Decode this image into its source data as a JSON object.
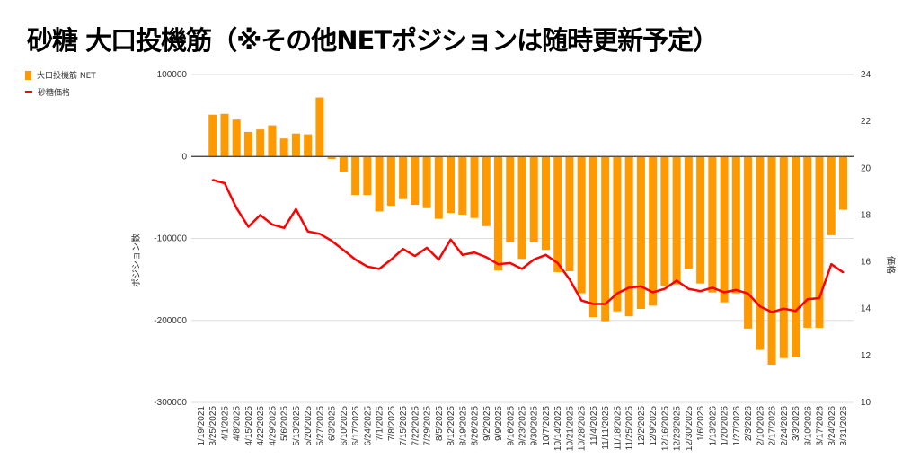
{
  "title": "砂糖 大口投機筋（※その他NETポジションは随時更新予定）",
  "chart_data": {
    "type": "bar+line",
    "title": "砂糖 大口投機筋（※その他NETポジションは随時更新予定）",
    "legend_position": "top-left",
    "grid": true,
    "ylabel": "ポジション数",
    "y2label": "価格",
    "ylim": [
      -300000,
      100000
    ],
    "y2lim": [
      10,
      24
    ],
    "yticks": [
      "100000",
      "0",
      "-100000",
      "-200000",
      "-300000"
    ],
    "ytick_values": [
      100000,
      0,
      -100000,
      -200000,
      -300000
    ],
    "y2ticks": [
      "24",
      "22",
      "20",
      "18",
      "16",
      "14",
      "12",
      "10"
    ],
    "y2tick_values": [
      24,
      22,
      20,
      18,
      16,
      14,
      12,
      10
    ],
    "categories": [
      "1/19/2021",
      "3/25/2025",
      "4/1/2025",
      "4/8/2025",
      "4/15/2025",
      "4/22/2025",
      "4/29/2025",
      "5/6/2025",
      "5/13/2025",
      "5/20/2025",
      "5/27/2025",
      "6/3/2025",
      "6/10/2025",
      "6/17/2025",
      "6/24/2025",
      "7/1/2025",
      "7/8/2025",
      "7/15/2025",
      "7/22/2025",
      "7/29/2025",
      "8/5/2025",
      "8/12/2025",
      "8/19/2025",
      "8/26/2025",
      "9/2/2025",
      "9/9/2025",
      "9/16/2025",
      "9/23/2025",
      "9/30/2025",
      "10/7/2025",
      "10/14/2025",
      "10/21/2025",
      "10/28/2025",
      "11/4/2025",
      "11/11/2025",
      "11/18/2025",
      "11/25/2025",
      "12/2/2025",
      "12/9/2025",
      "12/16/2025",
      "12/23/2025",
      "12/30/2025",
      "1/6/2026",
      "1/13/2026",
      "1/20/2026",
      "1/27/2026",
      "2/3/2026",
      "2/10/2026",
      "2/17/2026",
      "2/24/2026",
      "3/3/2026",
      "3/10/2026",
      "3/17/2026",
      "3/24/2026",
      "3/31/2026"
    ],
    "series": [
      {
        "name": "大口投機筋  NET",
        "type": "bar",
        "axis": "left",
        "color": "#ff9900",
        "values": [
          null,
          51000,
          52000,
          45000,
          30000,
          33000,
          38000,
          22000,
          28000,
          27000,
          72000,
          -3000,
          -19000,
          -47000,
          -47000,
          -67000,
          -60000,
          -52000,
          -59000,
          -63000,
          -76000,
          -69000,
          -71000,
          -75000,
          -85000,
          -139000,
          -105000,
          -125000,
          -105000,
          -114000,
          -141000,
          -140000,
          -167000,
          -196000,
          -201000,
          -189000,
          -195000,
          -186000,
          -182000,
          -158000,
          -156000,
          -137000,
          -155000,
          -166000,
          -178000,
          -167000,
          -210000,
          -236000,
          -254000,
          -246000,
          -245000,
          -209000,
          -209000,
          -96000,
          -65000
        ]
      },
      {
        "name": "砂糖価格",
        "type": "line",
        "axis": "right",
        "color": "#ff0000",
        "values": [
          null,
          19.5,
          19.36,
          18.3,
          17.5,
          18.0,
          17.6,
          17.45,
          18.25,
          17.3,
          17.2,
          16.9,
          16.5,
          16.1,
          15.8,
          15.7,
          16.1,
          16.55,
          16.25,
          16.6,
          16.1,
          16.95,
          16.3,
          16.4,
          16.2,
          15.9,
          15.95,
          15.7,
          16.1,
          16.3,
          15.95,
          15.25,
          14.35,
          14.2,
          14.2,
          14.65,
          14.9,
          14.95,
          14.7,
          14.85,
          15.2,
          14.85,
          14.75,
          14.9,
          14.7,
          14.8,
          14.65,
          14.1,
          13.85,
          14.0,
          13.9,
          14.4,
          14.45,
          15.9,
          15.55
        ]
      }
    ]
  }
}
